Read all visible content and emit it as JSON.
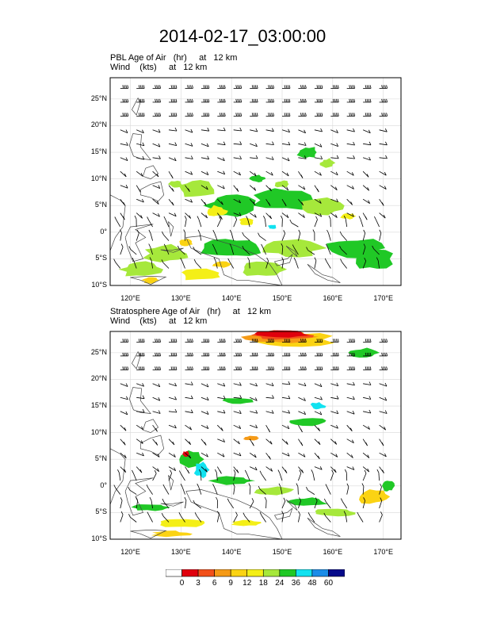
{
  "title": "2014-02-17_03:00:00",
  "panels": [
    {
      "label_line1": "PBL Age of Air   (hr)     at   12 km",
      "label_line2": "Wind    (kts)     at   12 km"
    },
    {
      "label_line1": "Stratosphere Age of Air   (hr)     at   12 km",
      "label_line2": "Wind    (kts)     at   12 km"
    }
  ],
  "lat_ticks": [
    "25°N",
    "20°N",
    "15°N",
    "10°N",
    "5°N",
    "0°",
    "5°S",
    "10°S"
  ],
  "lat_values": [
    25,
    20,
    15,
    10,
    5,
    0,
    -5,
    -10
  ],
  "lon_ticks": [
    "120°E",
    "130°E",
    "140°E",
    "150°E",
    "160°E",
    "170°E"
  ],
  "lon_values": [
    120,
    130,
    140,
    150,
    160,
    170
  ],
  "extent": {
    "lon_min": 116,
    "lon_max": 173.5,
    "lat_min": -10,
    "lat_max": 29
  },
  "colorbar": {
    "labels": [
      "0",
      "3",
      "6",
      "9",
      "12",
      "18",
      "24",
      "36",
      "48",
      "60"
    ],
    "colors": [
      "#ffffff",
      "#e0000d",
      "#f2501a",
      "#f59a16",
      "#fbd313",
      "#f4ef17",
      "#a6e83b",
      "#20c826",
      "#11e2f0",
      "#1a8ce8",
      "#050a8a"
    ]
  }
}
